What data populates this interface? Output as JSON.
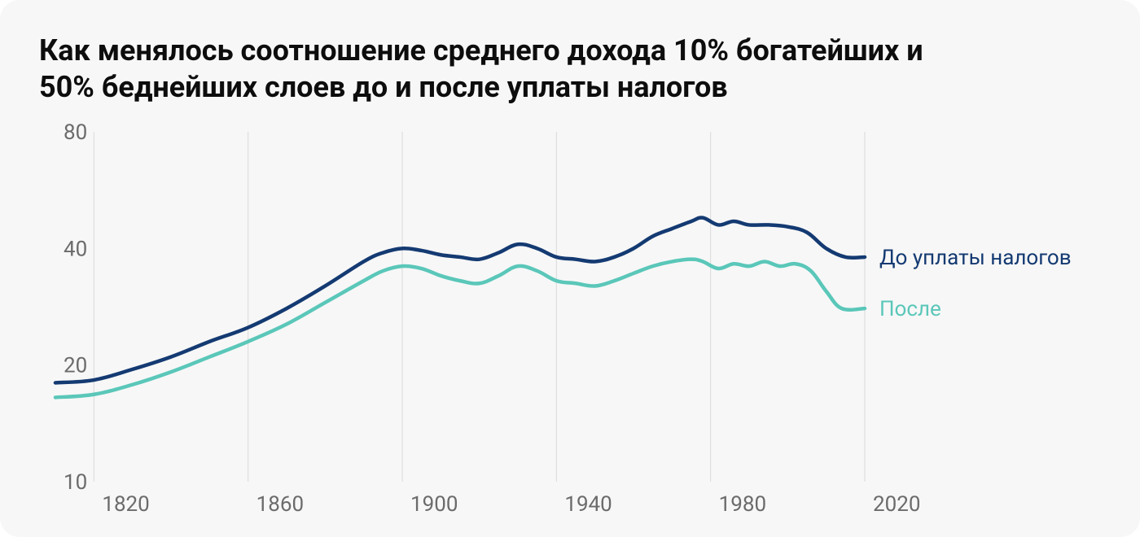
{
  "chart": {
    "type": "line",
    "title": "Как менялось соотношение среднего дохода 10% богатейших и 50% беднейших слоев до и после уплаты налогов",
    "title_fontsize": 36,
    "title_fontweight": 700,
    "title_color": "#0d0d0d",
    "background_color": "#f7f7f7",
    "card_border_radius": 24,
    "tick_fontsize": 26,
    "tick_color": "#6b6b6b",
    "grid_color": "#d9d9d9",
    "x": {
      "min": 1810,
      "max": 2020,
      "ticks": [
        1820,
        1860,
        1900,
        1940,
        1980,
        2020
      ],
      "grid_at": [
        1820,
        1860,
        1900,
        1940,
        1980,
        2020
      ]
    },
    "y": {
      "scale": "log",
      "min": 10,
      "max": 80,
      "ticks": [
        10,
        20,
        40,
        80
      ]
    },
    "series": [
      {
        "name": "pretax",
        "label": "До уплаты налогов",
        "color": "#143a72",
        "stroke_width": 4.5,
        "points": [
          [
            1810,
            18
          ],
          [
            1820,
            18.3
          ],
          [
            1830,
            19.5
          ],
          [
            1840,
            21
          ],
          [
            1850,
            23
          ],
          [
            1860,
            25
          ],
          [
            1870,
            28
          ],
          [
            1880,
            32
          ],
          [
            1890,
            37
          ],
          [
            1895,
            39
          ],
          [
            1900,
            40
          ],
          [
            1905,
            39.5
          ],
          [
            1910,
            38.5
          ],
          [
            1915,
            38
          ],
          [
            1920,
            37.5
          ],
          [
            1925,
            39
          ],
          [
            1930,
            41
          ],
          [
            1935,
            40
          ],
          [
            1940,
            38
          ],
          [
            1945,
            37.5
          ],
          [
            1950,
            37
          ],
          [
            1955,
            38
          ],
          [
            1960,
            40
          ],
          [
            1965,
            43
          ],
          [
            1970,
            45
          ],
          [
            1975,
            47
          ],
          [
            1978,
            48
          ],
          [
            1982,
            46
          ],
          [
            1986,
            47
          ],
          [
            1990,
            46
          ],
          [
            1995,
            46
          ],
          [
            2000,
            45.5
          ],
          [
            2005,
            44
          ],
          [
            2010,
            40
          ],
          [
            2015,
            38
          ],
          [
            2020,
            38
          ]
        ]
      },
      {
        "name": "posttax",
        "label": "После",
        "color": "#5ac7b9",
        "stroke_width": 4.5,
        "points": [
          [
            1810,
            16.5
          ],
          [
            1820,
            16.8
          ],
          [
            1830,
            17.8
          ],
          [
            1840,
            19.2
          ],
          [
            1850,
            21
          ],
          [
            1860,
            23
          ],
          [
            1870,
            25.5
          ],
          [
            1880,
            29
          ],
          [
            1890,
            33
          ],
          [
            1895,
            35
          ],
          [
            1900,
            36
          ],
          [
            1905,
            35.5
          ],
          [
            1910,
            34
          ],
          [
            1915,
            33
          ],
          [
            1920,
            32.5
          ],
          [
            1925,
            34
          ],
          [
            1930,
            36
          ],
          [
            1935,
            35
          ],
          [
            1940,
            33
          ],
          [
            1945,
            32.5
          ],
          [
            1950,
            32
          ],
          [
            1955,
            33
          ],
          [
            1960,
            34.5
          ],
          [
            1965,
            36
          ],
          [
            1970,
            37
          ],
          [
            1975,
            37.5
          ],
          [
            1978,
            37
          ],
          [
            1982,
            35.5
          ],
          [
            1986,
            36.5
          ],
          [
            1990,
            36
          ],
          [
            1994,
            37
          ],
          [
            1998,
            36
          ],
          [
            2002,
            36.5
          ],
          [
            2006,
            35
          ],
          [
            2010,
            31
          ],
          [
            2014,
            28
          ],
          [
            2020,
            28
          ]
        ]
      }
    ],
    "legend": {
      "fontsize": 26,
      "items": [
        {
          "series": "pretax",
          "color": "#143a72"
        },
        {
          "series": "posttax",
          "color": "#5ac7b9"
        }
      ]
    }
  }
}
